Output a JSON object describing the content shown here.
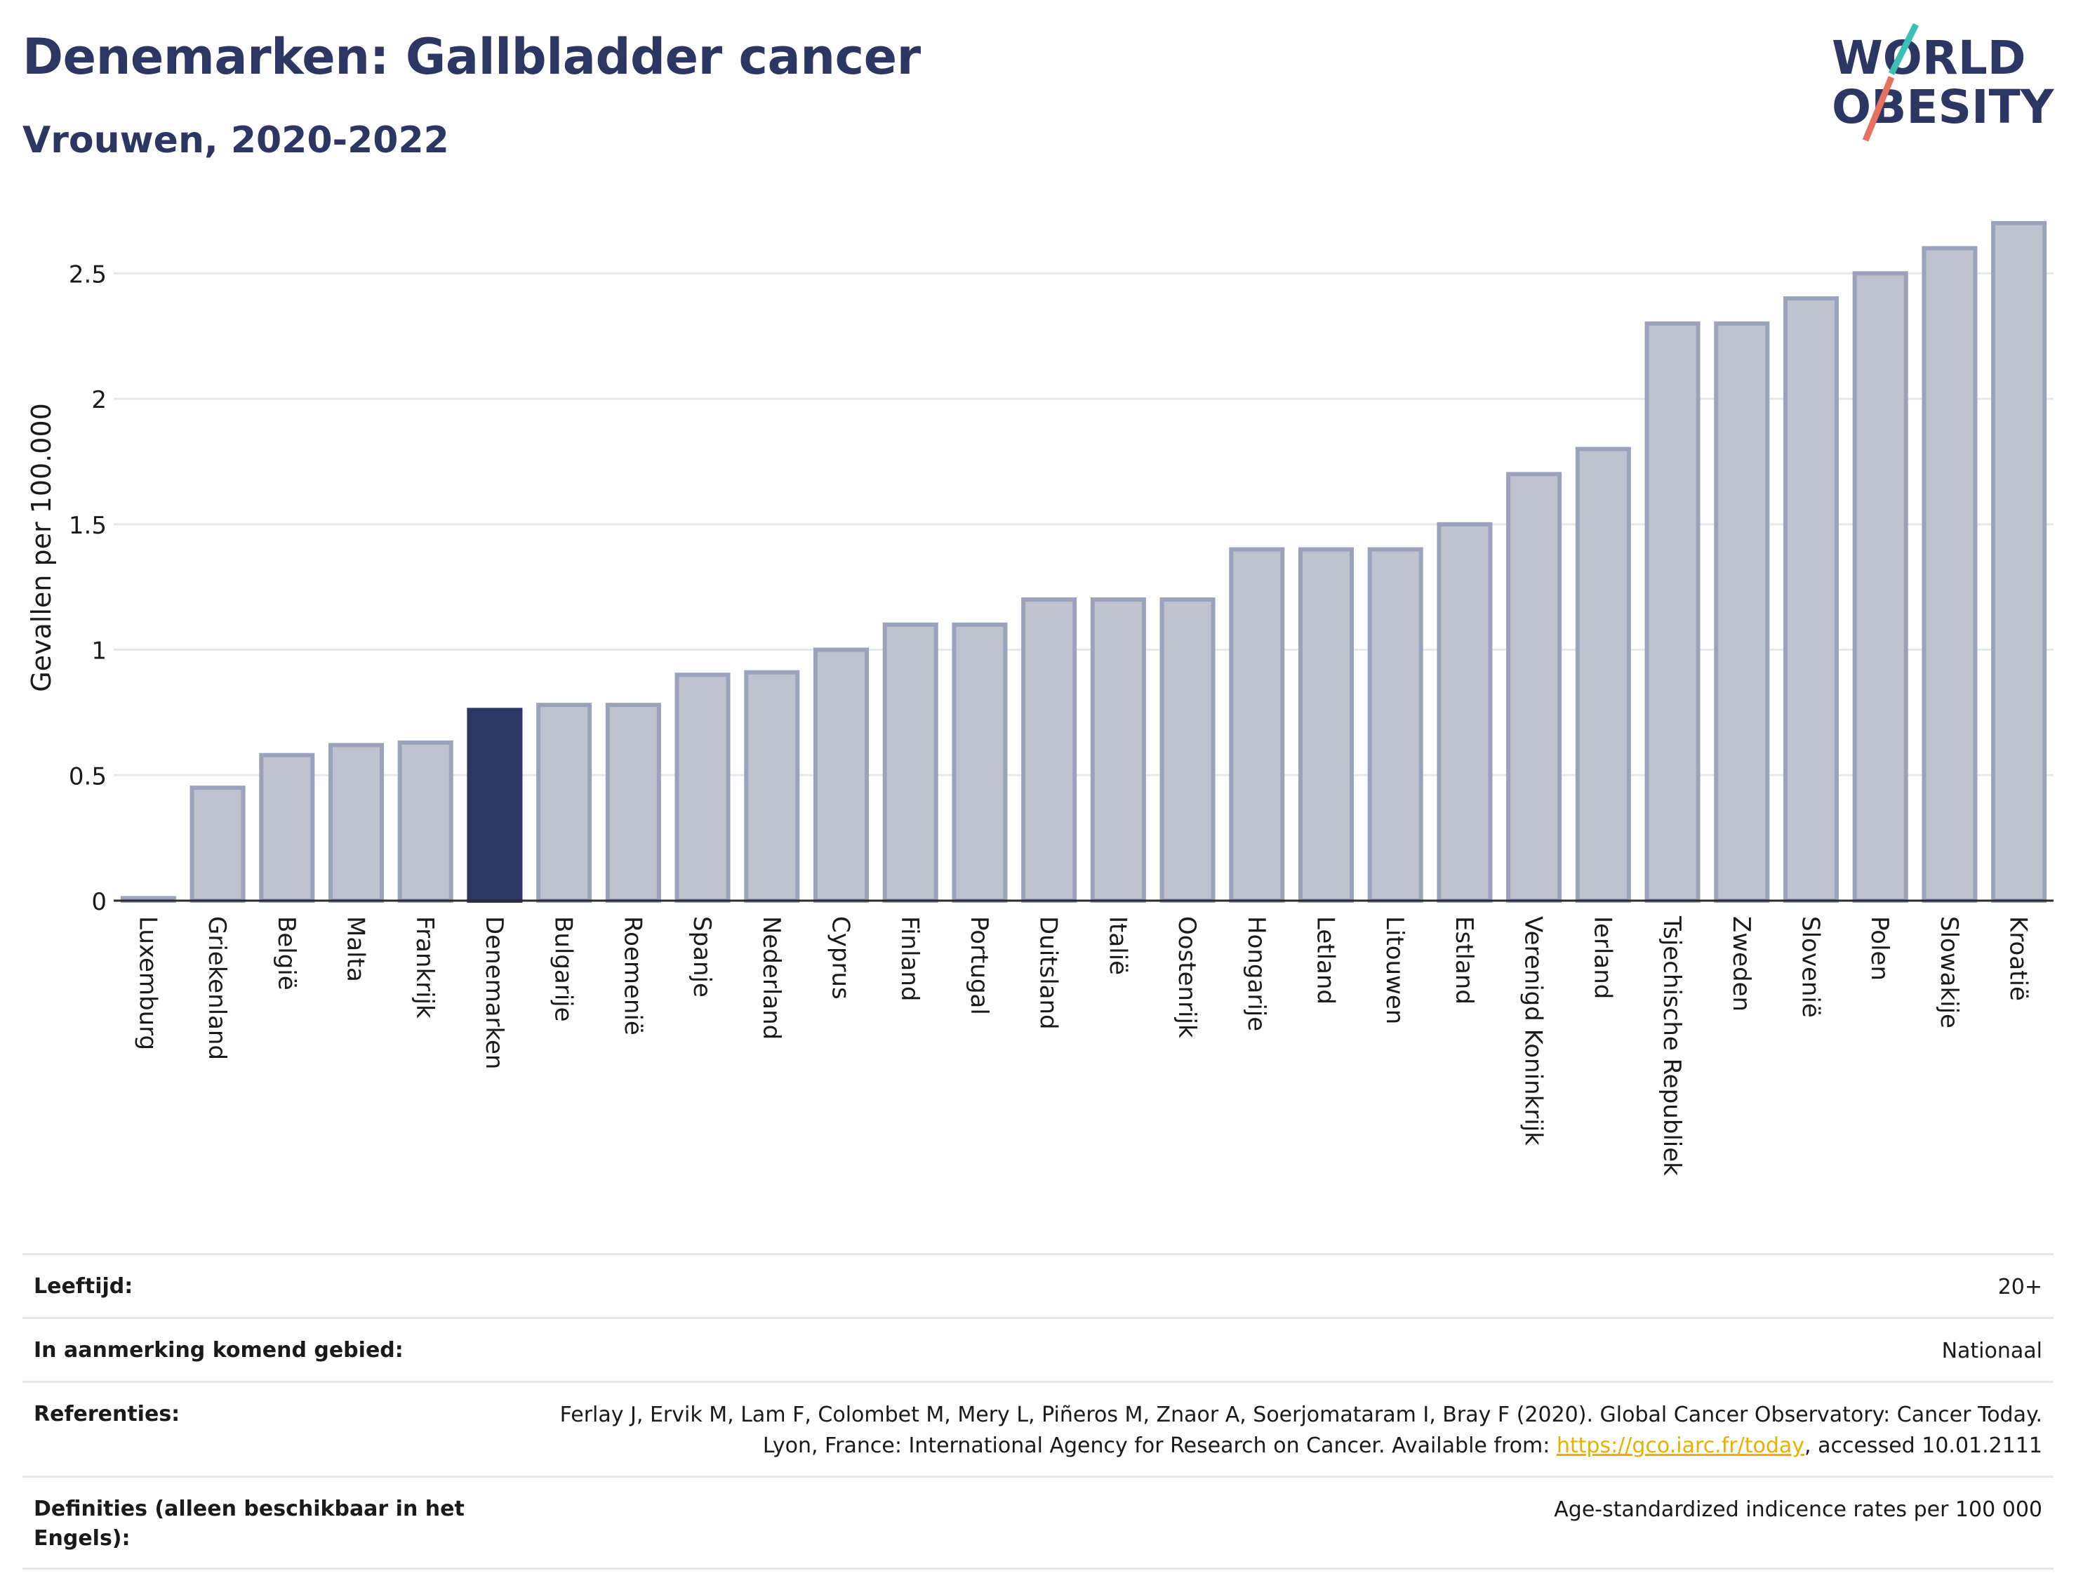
{
  "header": {
    "title": "Denemarken: Gallbladder cancer",
    "subtitle": "Vrouwen, 2020-2022"
  },
  "logo": {
    "line1": "WORLD",
    "line2": "OBESITY"
  },
  "chart_data": {
    "type": "bar",
    "ylabel": "Gevallen per 100.000",
    "ylim": [
      0,
      2.75
    ],
    "yticks": [
      "0",
      "0.5",
      "1",
      "1.5",
      "2",
      "2.5"
    ],
    "yticks_values": [
      0,
      0.5,
      1,
      1.5,
      2,
      2.5
    ],
    "grid": true,
    "highlight": "Denemarken",
    "colors": {
      "bar": "#bfc3d0",
      "bar_edge": "#9ba2bb",
      "highlight": "#2b3663",
      "grid": "#e6e8ee"
    },
    "categories": [
      "Luxemburg",
      "Griekenland",
      "België",
      "Malta",
      "Frankrijk",
      "Denemarken",
      "Bulgarije",
      "Roemenië",
      "Spanje",
      "Nederland",
      "Cyprus",
      "Finland",
      "Portugal",
      "Duitsland",
      "Italië",
      "Oostenrijk",
      "Hongarije",
      "Letland",
      "Litouwen",
      "Estland",
      "Verenigd Koninkrijk",
      "Ierland",
      "Tsjechische Republiek",
      "Zweden",
      "Slovenië",
      "Polen",
      "Slowakije",
      "Kroatië"
    ],
    "values": [
      0.01,
      0.45,
      0.58,
      0.62,
      0.63,
      0.76,
      0.78,
      0.78,
      0.9,
      0.91,
      1.0,
      1.1,
      1.1,
      1.2,
      1.2,
      1.2,
      1.4,
      1.4,
      1.4,
      1.5,
      1.7,
      1.8,
      2.3,
      2.3,
      2.4,
      2.5,
      2.6,
      2.7
    ]
  },
  "meta": {
    "age_label": "Leeftijd:",
    "age_value": "20+",
    "area_label": "In aanmerking komend gebied:",
    "area_value": "Nationaal",
    "ref_label": "Referenties:",
    "ref_text_1": "Ferlay J, Ervik M, Lam F, Colombet M, Mery L, Piñeros M, Znaor A, Soerjomataram I, Bray F (2020). Global Cancer Observatory: Cancer Today. Lyon, France: International Agency for Research on Cancer. Available from: ",
    "ref_link": "https://gco.iarc.fr/today",
    "ref_text_2": ", accessed 10.01.2111",
    "def_label": "Definities (alleen beschikbaar in het Engels):",
    "def_value": "Age-standardized indicence rates per 100 000"
  }
}
